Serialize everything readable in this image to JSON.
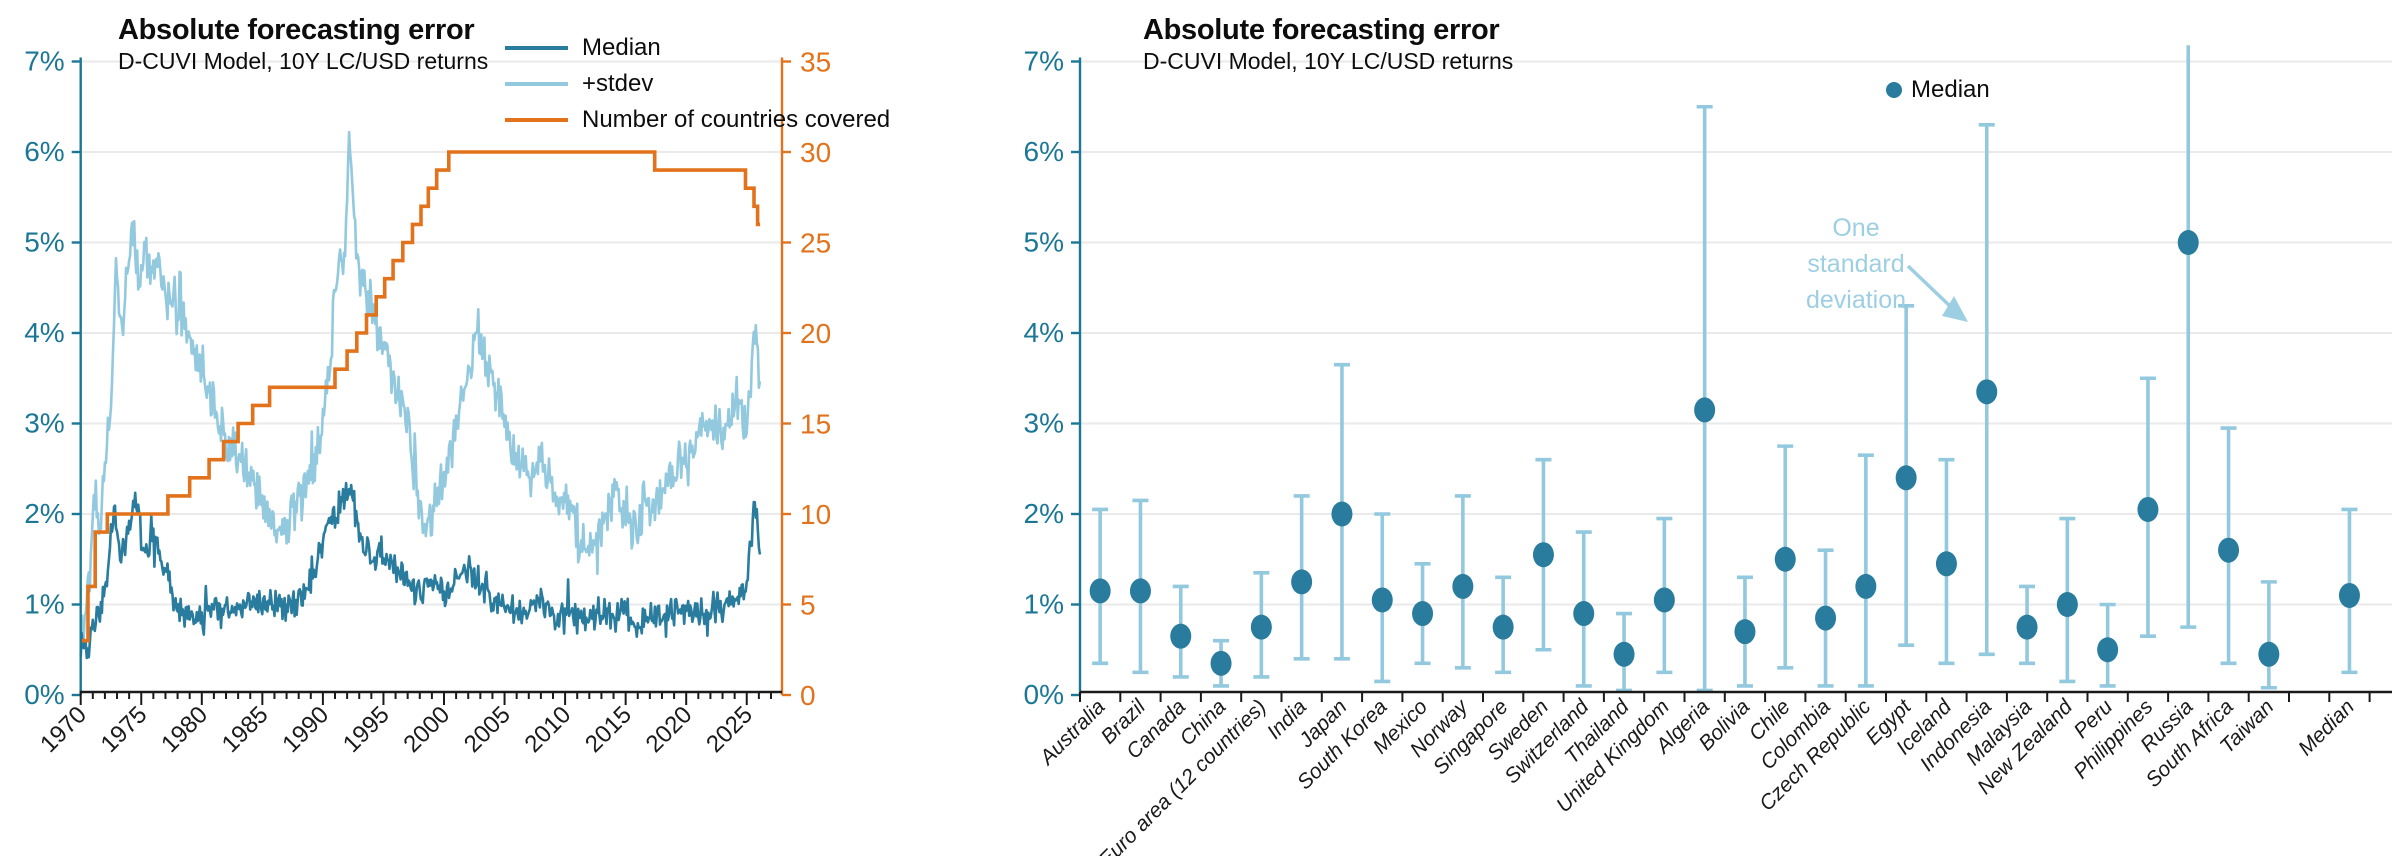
{
  "colors": {
    "median": "#2a7c9e",
    "stdev": "#92c9de",
    "countries": "#e2731c",
    "axis_teal": "#1b7795",
    "axis_black": "#1a1a1a",
    "grid": "#eaeaea",
    "annotation": "#9dcfe3"
  },
  "left_chart": {
    "title": "Absolute forecasting error",
    "subtitle": "D-CUVI Model, 10Y LC/USD returns",
    "legend": [
      {
        "label": "Median",
        "series": "median"
      },
      {
        "label": "+stdev",
        "series": "stdev"
      },
      {
        "label": "Number of countries covered",
        "series": "countries"
      }
    ]
  },
  "right_chart": {
    "title": "Absolute forecasting error",
    "subtitle": "D-CUVI Model, 10Y LC/USD returns",
    "legend_label": "Median",
    "annotation_lines": [
      "One",
      "standard",
      "deviation"
    ]
  },
  "chart_data": [
    {
      "type": "line",
      "title": "Absolute forecasting error",
      "subtitle": "D-CUVI Model, 10Y LC/USD returns",
      "grid": true,
      "x_range": [
        1970,
        2026.1
      ],
      "x_ticks_labeled": [
        1970,
        1975,
        1980,
        1985,
        1990,
        1995,
        2000,
        2005,
        2010,
        2015,
        2020,
        2025
      ],
      "ylim_left": [
        0,
        7
      ],
      "y_ticks_left": [
        "0%",
        "1%",
        "2%",
        "3%",
        "4%",
        "5%",
        "6%",
        "7%"
      ],
      "ylim_right": [
        0,
        35
      ],
      "y_ticks_right": [
        0,
        5,
        10,
        15,
        20,
        25,
        30,
        35
      ],
      "sampling": {
        "points_per_year": 12,
        "seed": 11,
        "noise_median": 0.2,
        "noise_stdev": 0.3
      },
      "series": [
        {
          "name": "Median",
          "axis": "left",
          "style": "noisy-line",
          "color_key": "median",
          "anchors": [
            [
              1970,
              0.55
            ],
            [
              1970.5,
              0.5
            ],
            [
              1971,
              0.8
            ],
            [
              1972,
              1.15
            ],
            [
              1972.8,
              2.05
            ],
            [
              1973.3,
              1.5
            ],
            [
              1974,
              1.9
            ],
            [
              1974.6,
              2.2
            ],
            [
              1975.2,
              1.55
            ],
            [
              1976,
              1.75
            ],
            [
              1976.6,
              1.45
            ],
            [
              1977.4,
              1.2
            ],
            [
              1978,
              0.95
            ],
            [
              1979,
              0.9
            ],
            [
              1980,
              0.8
            ],
            [
              1981,
              1.0
            ],
            [
              1982,
              0.9
            ],
            [
              1983,
              0.95
            ],
            [
              1984,
              1.0
            ],
            [
              1985,
              1.05
            ],
            [
              1986,
              1.0
            ],
            [
              1987,
              0.95
            ],
            [
              1988,
              1.05
            ],
            [
              1989,
              1.25
            ],
            [
              1990,
              1.7
            ],
            [
              1990.8,
              2.0
            ],
            [
              1991.5,
              2.1
            ],
            [
              1992.3,
              2.3
            ],
            [
              1993,
              1.8
            ],
            [
              1994,
              1.5
            ],
            [
              1994.8,
              1.65
            ],
            [
              1995.5,
              1.45
            ],
            [
              1996.3,
              1.35
            ],
            [
              1997,
              1.3
            ],
            [
              1998,
              1.15
            ],
            [
              1999,
              1.25
            ],
            [
              2000,
              1.1
            ],
            [
              2001,
              1.3
            ],
            [
              2002,
              1.4
            ],
            [
              2003,
              1.25
            ],
            [
              2004,
              1.05
            ],
            [
              2005,
              0.95
            ],
            [
              2006,
              0.85
            ],
            [
              2007,
              0.95
            ],
            [
              2008,
              1.05
            ],
            [
              2009,
              0.9
            ],
            [
              2010,
              1.0
            ],
            [
              2011,
              0.85
            ],
            [
              2012,
              0.8
            ],
            [
              2013,
              0.95
            ],
            [
              2014,
              0.85
            ],
            [
              2015,
              0.9
            ],
            [
              2016,
              0.8
            ],
            [
              2017,
              0.9
            ],
            [
              2018,
              0.85
            ],
            [
              2019,
              0.9
            ],
            [
              2020,
              0.95
            ],
            [
              2021,
              0.9
            ],
            [
              2022,
              1.0
            ],
            [
              2023,
              0.95
            ],
            [
              2024,
              1.05
            ],
            [
              2025,
              1.2
            ],
            [
              2025.6,
              2.1
            ],
            [
              2026.1,
              1.6
            ]
          ]
        },
        {
          "name": "+stdev",
          "axis": "left",
          "style": "noisy-line",
          "color_key": "stdev",
          "anchors": [
            [
              1970,
              0.5
            ],
            [
              1970.7,
              1.3
            ],
            [
              1971.2,
              2.2
            ],
            [
              1971.6,
              1.9
            ],
            [
              1972,
              2.6
            ],
            [
              1972.5,
              3.1
            ],
            [
              1972.9,
              4.75
            ],
            [
              1973.4,
              4.1
            ],
            [
              1973.8,
              4.5
            ],
            [
              1974.3,
              5.1
            ],
            [
              1974.8,
              4.5
            ],
            [
              1975.3,
              5.05
            ],
            [
              1975.8,
              4.6
            ],
            [
              1976.3,
              4.85
            ],
            [
              1977,
              4.3
            ],
            [
              1977.6,
              4.45
            ],
            [
              1978.3,
              4.15
            ],
            [
              1979,
              3.9
            ],
            [
              1980,
              3.55
            ],
            [
              1981,
              3.2
            ],
            [
              1982,
              2.75
            ],
            [
              1983,
              2.6
            ],
            [
              1984,
              2.45
            ],
            [
              1985,
              2.15
            ],
            [
              1986,
              1.9
            ],
            [
              1986.6,
              1.75
            ],
            [
              1987.3,
              2.0
            ],
            [
              1988,
              2.15
            ],
            [
              1989,
              2.5
            ],
            [
              1990,
              2.95
            ],
            [
              1990.7,
              3.9
            ],
            [
              1991.3,
              4.8
            ],
            [
              1991.8,
              4.85
            ],
            [
              1992.2,
              6.2
            ],
            [
              1992.7,
              5.0
            ],
            [
              1993.3,
              4.5
            ],
            [
              1994,
              4.35
            ],
            [
              1994.7,
              3.95
            ],
            [
              1995.5,
              3.8
            ],
            [
              1996.2,
              3.3
            ],
            [
              1997,
              2.95
            ],
            [
              1997.7,
              2.3
            ],
            [
              1998.3,
              1.85
            ],
            [
              1999,
              2.0
            ],
            [
              2000,
              2.35
            ],
            [
              2001,
              2.95
            ],
            [
              2002,
              3.55
            ],
            [
              2002.7,
              4.05
            ],
            [
              2003.4,
              3.75
            ],
            [
              2004,
              3.5
            ],
            [
              2005,
              3.05
            ],
            [
              2006,
              2.6
            ],
            [
              2007,
              2.35
            ],
            [
              2008,
              2.6
            ],
            [
              2009,
              2.3
            ],
            [
              2010,
              2.2
            ],
            [
              2011,
              1.75
            ],
            [
              2012,
              1.55
            ],
            [
              2013,
              1.9
            ],
            [
              2014,
              2.25
            ],
            [
              2015,
              2.05
            ],
            [
              2016,
              1.85
            ],
            [
              2017,
              2.05
            ],
            [
              2018,
              2.25
            ],
            [
              2019,
              2.5
            ],
            [
              2020,
              2.65
            ],
            [
              2021,
              2.85
            ],
            [
              2022,
              3.05
            ],
            [
              2023,
              2.9
            ],
            [
              2024,
              3.3
            ],
            [
              2025,
              3.0
            ],
            [
              2025.7,
              4.1
            ],
            [
              2026.1,
              3.4
            ]
          ]
        },
        {
          "name": "Number of countries covered",
          "axis": "right",
          "style": "step",
          "color_key": "countries",
          "anchors": [
            [
              1970,
              3
            ],
            [
              1970.6,
              6
            ],
            [
              1971.2,
              9
            ],
            [
              1972.2,
              10
            ],
            [
              1977.2,
              11
            ],
            [
              1979,
              12
            ],
            [
              1980.6,
              13
            ],
            [
              1981.8,
              14
            ],
            [
              1983,
              15
            ],
            [
              1984.2,
              16
            ],
            [
              1985.6,
              17
            ],
            [
              1991,
              18
            ],
            [
              1992,
              19
            ],
            [
              1992.8,
              20
            ],
            [
              1993.6,
              21
            ],
            [
              1994.4,
              22
            ],
            [
              1995.1,
              23
            ],
            [
              1995.8,
              24
            ],
            [
              1996.6,
              25
            ],
            [
              1997.4,
              26
            ],
            [
              1998.1,
              27
            ],
            [
              1998.7,
              28
            ],
            [
              1999.4,
              29
            ],
            [
              2000.4,
              30
            ],
            [
              2017.4,
              29
            ],
            [
              2024.9,
              28
            ],
            [
              2025.6,
              27
            ],
            [
              2025.9,
              26
            ]
          ]
        }
      ]
    },
    {
      "type": "scatter-errorbar",
      "title": "Absolute forecasting error",
      "subtitle": "D-CUVI Model, 10Y LC/USD returns",
      "legend": "Median",
      "annotation": "One standard deviation",
      "ylim": [
        0,
        7
      ],
      "y_ticks": [
        "0%",
        "1%",
        "2%",
        "3%",
        "4%",
        "5%",
        "6%",
        "7%"
      ],
      "categories": [
        "Australia",
        "Brazil",
        "Canada",
        "China",
        "Euro area (12 countries)",
        "India",
        "Japan",
        "South Korea",
        "Mexico",
        "Norway",
        "Singapore",
        "Sweden",
        "Switzerland",
        "Thailand",
        "United Kingdom",
        "Algeria",
        "Bolivia",
        "Chile",
        "Colombia",
        "Czech Republic",
        "Egypt",
        "Iceland",
        "Indonesia",
        "Malaysia",
        "New Zealand",
        "Peru",
        "Philippines",
        "Russia",
        "South Africa",
        "Taiwan",
        "Median"
      ],
      "median": [
        1.15,
        1.15,
        0.65,
        0.35,
        0.75,
        1.25,
        2.0,
        1.05,
        0.9,
        1.2,
        0.75,
        1.55,
        0.9,
        0.45,
        1.05,
        3.15,
        0.7,
        1.5,
        0.85,
        1.2,
        2.4,
        1.45,
        3.35,
        0.75,
        1.0,
        0.5,
        2.05,
        5.0,
        1.6,
        0.45,
        1.1
      ],
      "stdev_low": [
        0.35,
        0.25,
        0.2,
        0.1,
        0.2,
        0.4,
        0.4,
        0.15,
        0.35,
        0.3,
        0.25,
        0.5,
        0.1,
        0.05,
        0.25,
        0.05,
        0.1,
        0.3,
        0.1,
        0.1,
        0.55,
        0.35,
        0.45,
        0.35,
        0.15,
        0.1,
        0.65,
        0.75,
        0.35,
        0.08,
        0.25
      ],
      "stdev_high": [
        2.05,
        2.15,
        1.2,
        0.6,
        1.35,
        2.2,
        3.65,
        2.0,
        1.45,
        2.2,
        1.3,
        2.6,
        1.8,
        0.9,
        1.95,
        6.5,
        1.3,
        2.75,
        1.6,
        2.65,
        4.3,
        2.6,
        6.3,
        1.2,
        1.95,
        1.0,
        3.5,
        7.18,
        2.95,
        1.25,
        2.05
      ],
      "clipped_high": [
        "Russia"
      ]
    }
  ]
}
